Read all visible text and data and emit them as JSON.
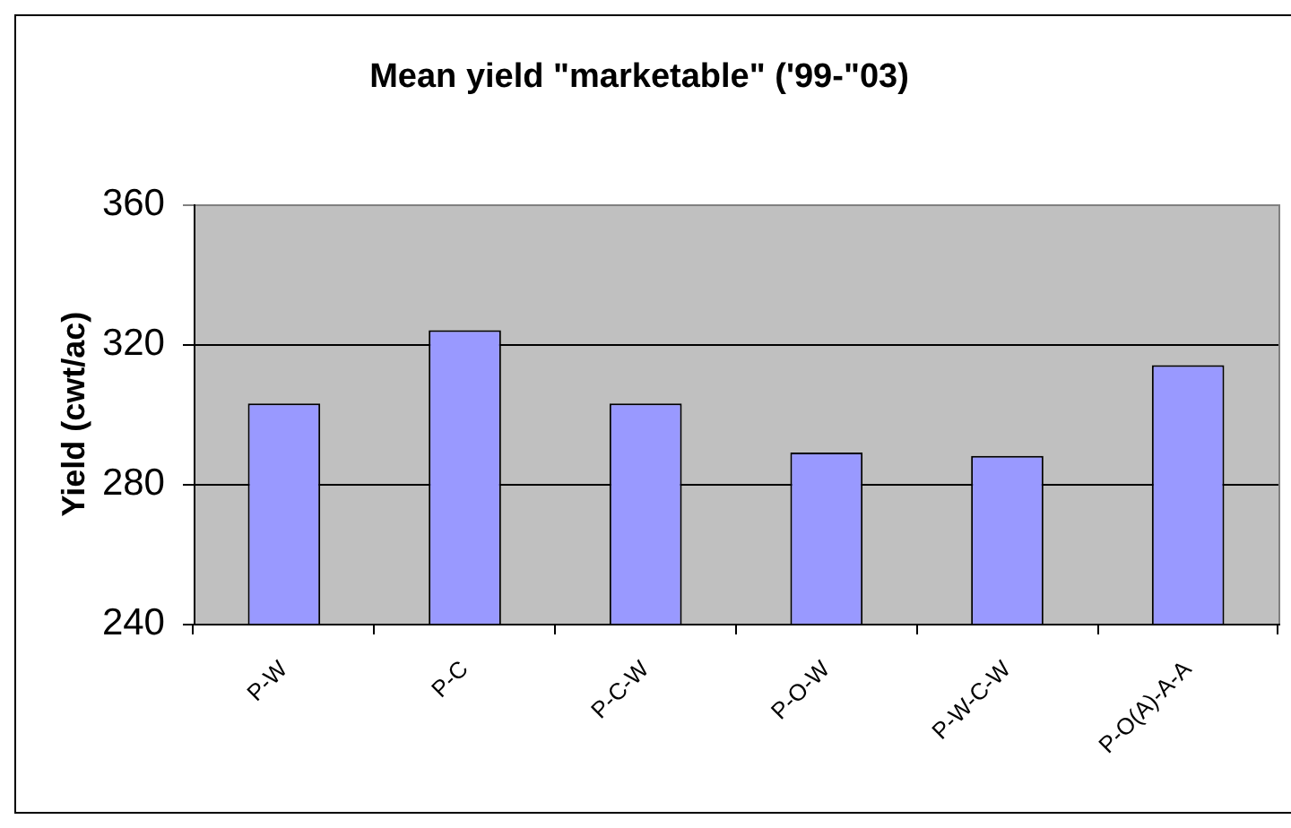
{
  "chart_data": {
    "type": "bar",
    "title": "Mean yield \"marketable\" ('99-\"03)",
    "ylabel": "Yield (cwt/ac)",
    "categories": [
      "P-W",
      "P-C",
      "P-C-W",
      "P-O-W",
      "P-W-C-W",
      "P-O(A)-A-A"
    ],
    "values": [
      303,
      324,
      303,
      289,
      288,
      314
    ],
    "color": "#9999ff",
    "ylim": [
      240,
      360
    ],
    "yticks": [
      240,
      280,
      320,
      360
    ],
    "grid": "y"
  }
}
